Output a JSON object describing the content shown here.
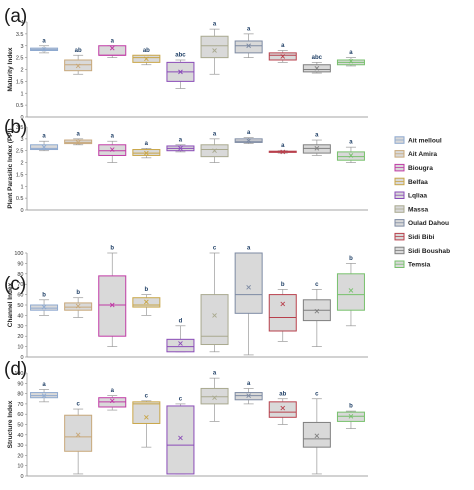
{
  "colors": {
    "box_fill": "#d9d9d9",
    "sig_text": "#1f3f66",
    "axis": "#888888"
  },
  "legend": [
    {
      "label": "Ait melloul",
      "color": "#8ea9cf"
    },
    {
      "label": "Ait Amira",
      "color": "#c8a87a"
    },
    {
      "label": "Biougra",
      "color": "#c03aa5"
    },
    {
      "label": "Belfaa",
      "color": "#c9a648"
    },
    {
      "label": "Lqliaa",
      "color": "#8a4bb8"
    },
    {
      "label": "Massa",
      "color": "#a9a98f"
    },
    {
      "label": "Oulad Dahou",
      "color": "#7d8aa3"
    },
    {
      "label": "Sidi Bibi",
      "color": "#b8404c"
    },
    {
      "label": "Sidi Boushab",
      "color": "#7f7f7f"
    },
    {
      "label": "Temsia",
      "color": "#77c06c"
    }
  ],
  "chart_data": [
    {
      "type": "box",
      "panel": "(a)",
      "ylabel": "Maturity Index",
      "ylim": [
        0,
        4
      ],
      "yticks": [
        0,
        0.5,
        1,
        1.5,
        2,
        2.5,
        3,
        3.5,
        4
      ],
      "significance": [
        "a",
        "ab",
        "a",
        "ab",
        "abc",
        "a",
        "a",
        "a",
        "abc",
        "a"
      ],
      "boxes": [
        {
          "min": 2.7,
          "q1": 2.8,
          "median": 2.85,
          "q3": 2.9,
          "max": 3.0,
          "mean": 2.85
        },
        {
          "min": 1.8,
          "q1": 1.95,
          "median": 2.2,
          "q3": 2.4,
          "max": 2.6,
          "mean": 2.15
        },
        {
          "min": 2.5,
          "q1": 2.6,
          "median": 2.6,
          "q3": 3.0,
          "max": 3.0,
          "mean": 2.9
        },
        {
          "min": 2.2,
          "q1": 2.3,
          "median": 2.5,
          "q3": 2.6,
          "max": 2.6,
          "mean": 2.45
        },
        {
          "min": 1.2,
          "q1": 1.5,
          "median": 1.9,
          "q3": 2.3,
          "max": 2.4,
          "mean": 1.9
        },
        {
          "min": 1.8,
          "q1": 2.5,
          "median": 3.0,
          "q3": 3.4,
          "max": 3.7,
          "mean": 2.8
        },
        {
          "min": 2.5,
          "q1": 2.7,
          "median": 3.0,
          "q3": 3.2,
          "max": 3.5,
          "mean": 3.0
        },
        {
          "min": 2.3,
          "q1": 2.4,
          "median": 2.6,
          "q3": 2.7,
          "max": 2.8,
          "mean": 2.55
        },
        {
          "min": 1.85,
          "q1": 1.9,
          "median": 2.0,
          "q3": 2.2,
          "max": 2.3,
          "mean": 2.05
        },
        {
          "min": 2.15,
          "q1": 2.2,
          "median": 2.3,
          "q3": 2.4,
          "max": 2.5,
          "mean": 2.35
        }
      ]
    },
    {
      "type": "box",
      "panel": "(b)",
      "ylabel": "Plant Parasitic Index (PPI)",
      "ylim": [
        0,
        3.5
      ],
      "yticks": [
        0,
        0.5,
        1,
        1.5,
        2,
        2.5,
        3,
        3.5
      ],
      "significance": [
        "a",
        "a",
        "a",
        "a",
        "a",
        "a",
        "a",
        "a",
        "a",
        "a"
      ],
      "boxes": [
        {
          "min": 2.5,
          "q1": 2.55,
          "median": 2.6,
          "q3": 2.75,
          "max": 2.9,
          "mean": 2.65
        },
        {
          "min": 2.75,
          "q1": 2.8,
          "median": 2.85,
          "q3": 2.95,
          "max": 3.0,
          "mean": 2.85
        },
        {
          "min": 2.0,
          "q1": 2.3,
          "median": 2.5,
          "q3": 2.75,
          "max": 2.9,
          "mean": 2.55
        },
        {
          "min": 2.2,
          "q1": 2.3,
          "median": 2.4,
          "q3": 2.55,
          "max": 2.6,
          "mean": 2.4
        },
        {
          "min": 2.45,
          "q1": 2.5,
          "median": 2.6,
          "q3": 2.7,
          "max": 2.75,
          "mean": 2.6
        },
        {
          "min": 2.0,
          "q1": 2.25,
          "median": 2.55,
          "q3": 2.75,
          "max": 3.0,
          "mean": 2.5
        },
        {
          "min": 2.8,
          "q1": 2.85,
          "median": 2.9,
          "q3": 3.0,
          "max": 3.05,
          "mean": 2.92
        },
        {
          "min": 2.4,
          "q1": 2.43,
          "median": 2.45,
          "q3": 2.48,
          "max": 2.5,
          "mean": 2.45
        },
        {
          "min": 2.3,
          "q1": 2.4,
          "median": 2.6,
          "q3": 2.75,
          "max": 2.95,
          "mean": 2.6
        },
        {
          "min": 2.0,
          "q1": 2.1,
          "median": 2.25,
          "q3": 2.45,
          "max": 2.65,
          "mean": 2.3
        }
      ]
    },
    {
      "type": "box",
      "panel": "(c)",
      "ylabel": "Channel Index",
      "ylim": [
        0,
        100
      ],
      "yticks": [
        0,
        10,
        20,
        30,
        40,
        50,
        60,
        70,
        80,
        90,
        100
      ],
      "significance": [
        "b",
        "b",
        "b",
        "b",
        "d",
        "c",
        "a",
        "b",
        "c",
        "b"
      ],
      "boxes": [
        {
          "min": 40,
          "q1": 45,
          "median": 47,
          "q3": 50,
          "max": 55,
          "mean": 48
        },
        {
          "min": 38,
          "q1": 45,
          "median": 48,
          "q3": 52,
          "max": 57,
          "mean": 49
        },
        {
          "min": 10,
          "q1": 20,
          "median": 50,
          "q3": 78,
          "max": 100,
          "mean": 50
        },
        {
          "min": 40,
          "q1": 48,
          "median": 50,
          "q3": 57,
          "max": 60,
          "mean": 53
        },
        {
          "min": 5,
          "q1": 5,
          "median": 10,
          "q3": 17,
          "max": 30,
          "mean": 13
        },
        {
          "min": 5,
          "q1": 12,
          "median": 20,
          "q3": 60,
          "max": 100,
          "mean": 40
        },
        {
          "min": 2,
          "q1": 42,
          "median": 60,
          "q3": 100,
          "max": 100,
          "mean": 67
        },
        {
          "min": 15,
          "q1": 25,
          "median": 38,
          "q3": 60,
          "max": 65,
          "mean": 51
        },
        {
          "min": 10,
          "q1": 35,
          "median": 45,
          "q3": 55,
          "max": 65,
          "mean": 44
        },
        {
          "min": 30,
          "q1": 45,
          "median": 60,
          "q3": 80,
          "max": 90,
          "mean": 64
        }
      ]
    },
    {
      "type": "box",
      "panel": "(d)",
      "ylabel": "Structure Index",
      "ylim": [
        0,
        100
      ],
      "yticks": [
        0,
        10,
        20,
        30,
        40,
        50,
        60,
        70,
        80,
        90,
        100
      ],
      "significance": [
        "a",
        "c",
        "a",
        "c",
        "c",
        "a",
        "a",
        "ab",
        "c",
        "b"
      ],
      "boxes": [
        {
          "min": 72,
          "q1": 76,
          "median": 78,
          "q3": 81,
          "max": 84,
          "mean": 78
        },
        {
          "min": 2,
          "q1": 24,
          "median": 38,
          "q3": 59,
          "max": 65,
          "mean": 40
        },
        {
          "min": 64,
          "q1": 67,
          "median": 72,
          "q3": 76,
          "max": 78,
          "mean": 73
        },
        {
          "min": 28,
          "q1": 51,
          "median": 70,
          "q3": 72,
          "max": 73,
          "mean": 57
        },
        {
          "min": 2,
          "q1": 2,
          "median": 30,
          "q3": 68,
          "max": 70,
          "mean": 37
        },
        {
          "min": 53,
          "q1": 70,
          "median": 77,
          "q3": 85,
          "max": 95,
          "mean": 76
        },
        {
          "min": 70,
          "q1": 74,
          "median": 78,
          "q3": 81,
          "max": 85,
          "mean": 78
        },
        {
          "min": 50,
          "q1": 57,
          "median": 62,
          "q3": 72,
          "max": 75,
          "mean": 66
        },
        {
          "min": 2,
          "q1": 28,
          "median": 36,
          "q3": 52,
          "max": 75,
          "mean": 39
        },
        {
          "min": 46,
          "q1": 53,
          "median": 58,
          "q3": 62,
          "max": 63,
          "mean": 58
        }
      ]
    }
  ]
}
